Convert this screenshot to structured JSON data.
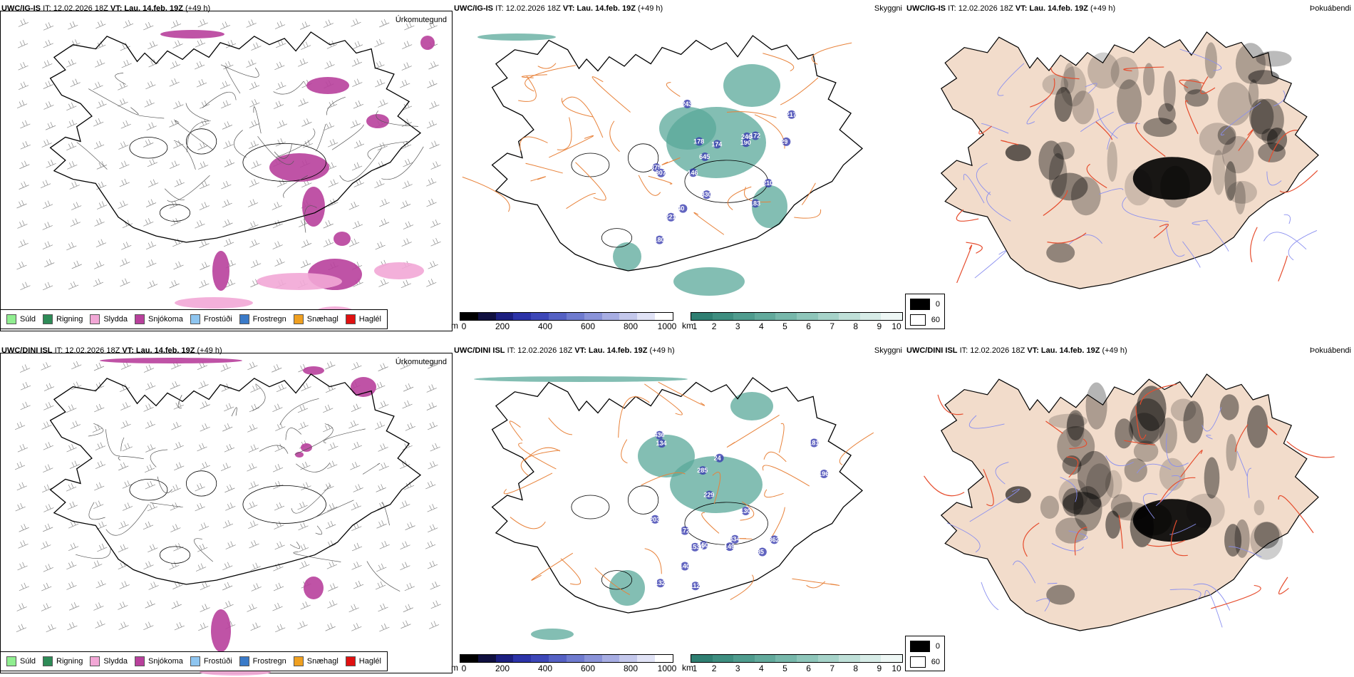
{
  "panels": {
    "r1c1": {
      "model": "UWC/IG-IS",
      "it": "IT: 12.02.2026 18Z",
      "vt": "VT: Lau. 14.feb. 19Z",
      "lead": "(+49 h)",
      "param": "Úrkomutegund"
    },
    "r1c2": {
      "model": "UWC/IG-IS",
      "it": "IT: 12.02.2026 18Z",
      "vt": "VT: Lau. 14.feb. 19Z",
      "lead": "(+49 h)",
      "param": "Skyggni"
    },
    "r1c3": {
      "model": "UWC/IG-IS",
      "it": "IT: 12.02.2026 18Z",
      "vt": "VT: Lau. 14.feb. 19Z",
      "lead": "(+49 h)",
      "param": "Þokuábendi"
    },
    "r2c1": {
      "model": "UWC/DINI ISL",
      "it": "IT: 12.02.2026 18Z",
      "vt": "VT: Lau. 14.feb. 19Z",
      "lead": "(+49 h)",
      "param": "Úrkomutegund"
    },
    "r2c2": {
      "model": "UWC/DINI ISL",
      "it": "IT: 12.02.2026 18Z",
      "vt": "VT: Lau. 14.feb. 19Z",
      "lead": "(+49 h)",
      "param": "Skyggni"
    },
    "r2c3": {
      "model": "UWC/DINI ISL",
      "it": "IT: 12.02.2026 18Z",
      "vt": "VT: Lau. 14.feb. 19Z",
      "lead": "(+49 h)",
      "param": "Þokuábendi"
    }
  },
  "precip_legend": [
    {
      "label": "Súld",
      "color": "#90ee90"
    },
    {
      "label": "Rigning",
      "color": "#2e8b57"
    },
    {
      "label": "Slydda",
      "color": "#f2a7d6"
    },
    {
      "label": "Snjókoma",
      "color": "#b8409c"
    },
    {
      "label": "Frostúði",
      "color": "#8ec5f0"
    },
    {
      "label": "Frostregn",
      "color": "#3a7ac8"
    },
    {
      "label": "Snæhagl",
      "color": "#f0a020"
    },
    {
      "label": "Haglél",
      "color": "#e01010"
    }
  ],
  "ceiling_scale": {
    "unit": "m",
    "ticks": [
      "0",
      "200",
      "400",
      "600",
      "800",
      "1000"
    ]
  },
  "vis_scale": {
    "unit": "km",
    "ticks": [
      "1",
      "2",
      "3",
      "4",
      "5",
      "6",
      "7",
      "8",
      "9",
      "10"
    ]
  },
  "fog_key": {
    "dark_label": "0",
    "light_label": "60"
  },
  "ceiling_labels": {
    "r1": [
      "217",
      "174",
      "210",
      "190",
      "221",
      "246",
      "183",
      "172",
      "645",
      "830",
      "243",
      "178",
      "375",
      "146",
      "29",
      "307",
      "180",
      "40"
    ],
    "r2": [
      "134",
      "436",
      "203",
      "181",
      "196",
      "85",
      "24",
      "150",
      "132",
      "862",
      "1530",
      "130",
      "112",
      "172",
      "334",
      "229",
      "149",
      "140",
      "285"
    ]
  },
  "colors": {
    "road": "#e8823a",
    "coast": "#000000",
    "fogland": "#f2dccb",
    "fogroad": "#e64d2e",
    "fogriver": "#8a8ff0",
    "snow": "#b8409c",
    "sleet": "#f2a7d6",
    "rain": "#2e8b57",
    "teal": "#5aa89a",
    "blue": "#3a3db0"
  }
}
